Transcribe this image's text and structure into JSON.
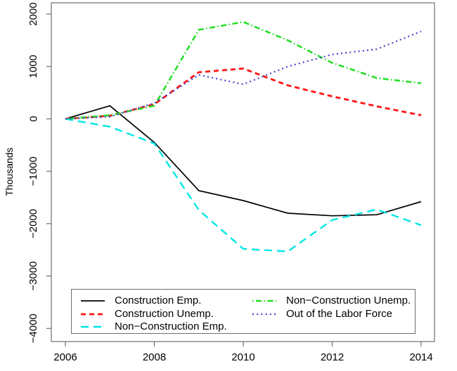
{
  "figure": {
    "background": "#ffffff",
    "axis_color": "#6e6e6e"
  },
  "chart_data": {
    "type": "line",
    "title": "",
    "xlabel": "",
    "ylabel": "Thousands",
    "xlim": [
      2006,
      2014
    ],
    "ylim": [
      -4000,
      2000
    ],
    "grid": false,
    "legend_position": "bottom-inside-box",
    "x": [
      2006,
      2007,
      2008,
      2009,
      2010,
      2011,
      2012,
      2013,
      2014
    ],
    "xticks": [
      2006,
      2008,
      2010,
      2012,
      2014
    ],
    "xtick_labels": [
      "2006",
      "2008",
      "2010",
      "2012",
      "2014"
    ],
    "yticks": [
      2000,
      1000,
      0,
      -1000,
      -2000,
      -3000,
      -4000
    ],
    "ytick_labels": [
      "2000",
      "1000",
      "0",
      "−1000",
      "−2000",
      "−3000",
      "−4000"
    ],
    "series": [
      {
        "name": "Construction Emp.",
        "color": "#000000",
        "dash": "solid",
        "values": [
          0,
          250,
          -450,
          -1370,
          -1560,
          -1800,
          -1850,
          -1830,
          -1580
        ]
      },
      {
        "name": "Construction Unemp.",
        "color": "#ff1414",
        "dash": "dashed",
        "values": [
          0,
          60,
          280,
          890,
          960,
          640,
          430,
          240,
          70
        ]
      },
      {
        "name": "Non−Construction Emp.",
        "color": "#00e5e5",
        "dash": "longdash",
        "values": [
          0,
          -150,
          -470,
          -1740,
          -2480,
          -2530,
          -1930,
          -1730,
          -2030
        ]
      },
      {
        "name": "Non−Construction Unemp.",
        "color": "#22dd22",
        "dash": "dotdash",
        "values": [
          0,
          70,
          250,
          1700,
          1850,
          1500,
          1070,
          780,
          680
        ]
      },
      {
        "name": "Out of the Labor Force",
        "color": "#4646d2",
        "dash": "dotted",
        "values": [
          0,
          40,
          300,
          840,
          660,
          1000,
          1230,
          1330,
          1670
        ]
      }
    ],
    "legend_columns": [
      [
        0,
        1,
        2
      ],
      [
        3,
        4
      ]
    ]
  }
}
